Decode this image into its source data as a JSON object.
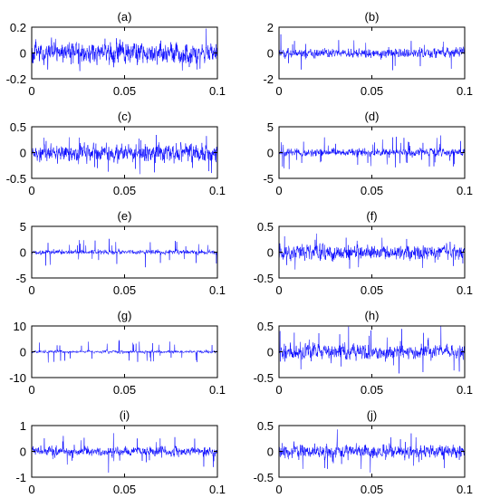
{
  "chart_data": [
    {
      "type": "line",
      "title": "(a)",
      "xlim": [
        0,
        0.1
      ],
      "ylim": [
        -0.2,
        0.2
      ],
      "yticks": [
        "-0.2",
        "0",
        "0.2"
      ],
      "xticks": [
        "0",
        "0.05",
        "0.1"
      ],
      "series": [
        {
          "noise_std": 0.065,
          "spike_prob": 0.0,
          "spike_scale": 1.0
        }
      ],
      "line_color": "#0000ff"
    },
    {
      "type": "line",
      "title": "(b)",
      "xlim": [
        0,
        0.1
      ],
      "ylim": [
        -2,
        2
      ],
      "yticks": [
        "-2",
        "0",
        "2"
      ],
      "xticks": [
        "0",
        "0.05",
        "0.1"
      ],
      "series": [
        {
          "noise_std": 0.28,
          "spike_prob": 0.03,
          "spike_scale": 2.8
        }
      ],
      "line_color": "#0000ff"
    },
    {
      "type": "line",
      "title": "(c)",
      "xlim": [
        0,
        0.1
      ],
      "ylim": [
        -0.5,
        0.5
      ],
      "yticks": [
        "-0.5",
        "0",
        "0.5"
      ],
      "xticks": [
        "0",
        "0.05",
        "0.1"
      ],
      "series": [
        {
          "noise_std": 0.13,
          "spike_prob": 0.02,
          "spike_scale": 1.8
        }
      ],
      "line_color": "#0000ff"
    },
    {
      "type": "line",
      "title": "(d)",
      "xlim": [
        0,
        0.1
      ],
      "ylim": [
        -5,
        5
      ],
      "yticks": [
        "-5",
        "0",
        "5"
      ],
      "xticks": [
        "0",
        "0.05",
        "0.1"
      ],
      "series": [
        {
          "noise_std": 0.55,
          "spike_prob": 0.04,
          "spike_scale": 3.5
        }
      ],
      "line_color": "#0000ff"
    },
    {
      "type": "line",
      "title": "(e)",
      "xlim": [
        0,
        0.1
      ],
      "ylim": [
        -5,
        5
      ],
      "yticks": [
        "-5",
        "0",
        "5"
      ],
      "xticks": [
        "0",
        "0.05",
        "0.1"
      ],
      "series": [
        {
          "noise_std": 0.35,
          "spike_prob": 0.035,
          "spike_scale": 5.0
        }
      ],
      "line_color": "#0000ff"
    },
    {
      "type": "line",
      "title": "(f)",
      "xlim": [
        0,
        0.1
      ],
      "ylim": [
        -0.5,
        0.5
      ],
      "yticks": [
        "-0.5",
        "0",
        "0.5"
      ],
      "xticks": [
        "0",
        "0.05",
        "0.1"
      ],
      "series": [
        {
          "noise_std": 0.11,
          "spike_prob": 0.02,
          "spike_scale": 2.0
        }
      ],
      "line_color": "#0000ff"
    },
    {
      "type": "line",
      "title": "(g)",
      "xlim": [
        0,
        0.1
      ],
      "ylim": [
        -10,
        10
      ],
      "yticks": [
        "-10",
        "0",
        "10"
      ],
      "xticks": [
        "0",
        "0.05",
        "0.1"
      ],
      "series": [
        {
          "noise_std": 0.45,
          "spike_prob": 0.03,
          "spike_scale": 6.0
        }
      ],
      "line_color": "#0000ff"
    },
    {
      "type": "line",
      "title": "(h)",
      "xlim": [
        0,
        0.1
      ],
      "ylim": [
        -0.5,
        0.5
      ],
      "yticks": [
        "-0.5",
        "0",
        "0.5"
      ],
      "xticks": [
        "0",
        "0.05",
        "0.1"
      ],
      "series": [
        {
          "noise_std": 0.11,
          "spike_prob": 0.025,
          "spike_scale": 2.4
        }
      ],
      "line_color": "#0000ff"
    },
    {
      "type": "line",
      "title": "(i)",
      "xlim": [
        0,
        0.1
      ],
      "ylim": [
        -1,
        1
      ],
      "yticks": [
        "-1",
        "0",
        "1"
      ],
      "xticks": [
        "0",
        "0.05",
        "0.1"
      ],
      "series": [
        {
          "noise_std": 0.14,
          "spike_prob": 0.025,
          "spike_scale": 2.8
        }
      ],
      "line_color": "#0000ff"
    },
    {
      "type": "line",
      "title": "(j)",
      "xlim": [
        0,
        0.1
      ],
      "ylim": [
        -0.5,
        0.5
      ],
      "yticks": [
        "-0.5",
        "0",
        "0.5"
      ],
      "xticks": [
        "0",
        "0.05",
        "0.1"
      ],
      "series": [
        {
          "noise_std": 0.1,
          "spike_prob": 0.02,
          "spike_scale": 2.2
        }
      ],
      "line_color": "#0000ff"
    }
  ]
}
